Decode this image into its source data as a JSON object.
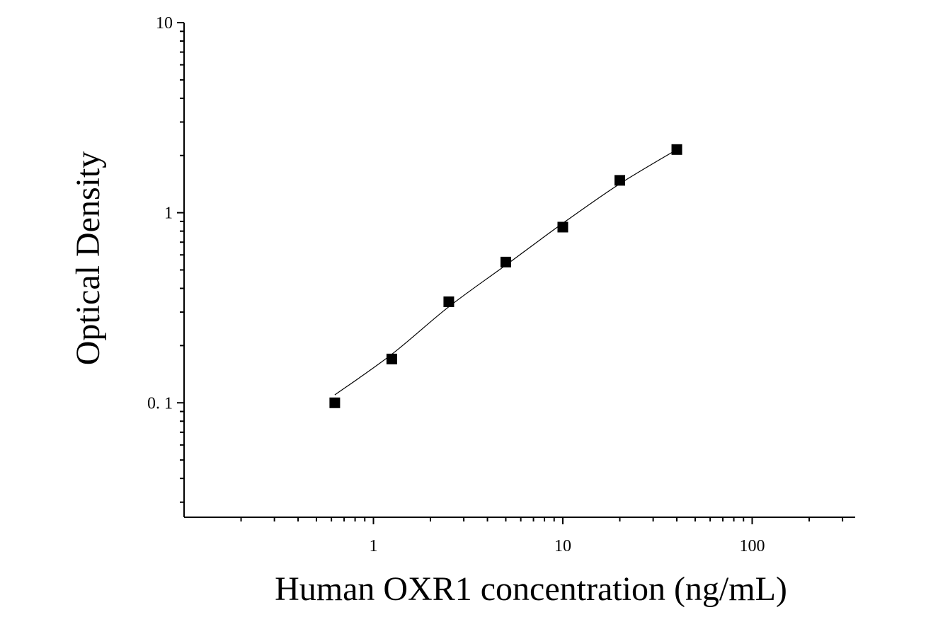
{
  "chart_data": {
    "type": "scatter",
    "title": "",
    "xlabel": "Human OXR1 concentration (ng/mL)",
    "ylabel": "Optical Density",
    "x_scale": "log",
    "y_scale": "log",
    "xlim": [
      0.1,
      350
    ],
    "ylim": [
      0.025,
      10
    ],
    "x_ticks": [
      {
        "value": 1,
        "label": "1"
      },
      {
        "value": 10,
        "label": "10"
      },
      {
        "value": 100,
        "label": "100"
      }
    ],
    "y_ticks": [
      {
        "value": 0.1,
        "label": "0. 1"
      },
      {
        "value": 1,
        "label": "1"
      },
      {
        "value": 10,
        "label": "10"
      }
    ],
    "grid": false,
    "legend": "none",
    "series": [
      {
        "marker": "square",
        "color": "#000000",
        "x": [
          0.625,
          1.25,
          2.5,
          5,
          10,
          20,
          40
        ],
        "y": [
          0.1,
          0.17,
          0.34,
          0.55,
          0.84,
          1.48,
          2.15
        ]
      }
    ],
    "fit_curve": {
      "color": "#000000",
      "x": [
        0.625,
        1.25,
        2.5,
        5,
        10,
        20,
        40
      ],
      "y": [
        0.11,
        0.18,
        0.32,
        0.53,
        0.88,
        1.42,
        2.15
      ]
    }
  }
}
